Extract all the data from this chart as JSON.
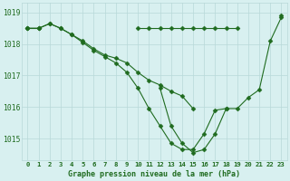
{
  "title": "Graphe pression niveau de la mer (hPa)",
  "x": [
    0,
    1,
    2,
    3,
    4,
    5,
    6,
    7,
    8,
    9,
    10,
    11,
    12,
    13,
    14,
    15,
    16,
    17,
    18,
    19,
    20,
    21,
    22,
    23
  ],
  "line_flat": [
    1018.5,
    1018.5,
    null,
    null,
    null,
    null,
    null,
    null,
    null,
    null,
    1018.5,
    1018.5,
    1018.5,
    1018.5,
    1018.5,
    1018.5,
    1018.5,
    1018.5,
    1018.5,
    1018.5,
    null,
    null,
    null,
    1018.9
  ],
  "line_slow": [
    1018.5,
    1018.5,
    1018.65,
    1018.5,
    1018.3,
    1018.1,
    1017.85,
    1017.65,
    1017.55,
    1017.4,
    1017.1,
    1016.85,
    1016.7,
    1016.5,
    1016.35,
    1015.95,
    null,
    null,
    null,
    null,
    null,
    null,
    null,
    null
  ],
  "line_main": [
    1018.5,
    1018.5,
    1018.65,
    1018.5,
    1018.3,
    1018.05,
    1017.8,
    1017.6,
    1017.4,
    1017.1,
    1016.6,
    1015.95,
    1015.4,
    1014.85,
    1014.65,
    1014.65,
    1015.15,
    1015.9,
    1015.95,
    1015.95,
    1016.3,
    1016.55,
    1018.1,
    1018.85
  ],
  "line_inner": [
    null,
    null,
    null,
    null,
    null,
    null,
    null,
    null,
    null,
    null,
    null,
    null,
    1016.6,
    1015.4,
    1014.85,
    1014.55,
    1014.65,
    1015.15,
    1015.95,
    null,
    null,
    null,
    null,
    null
  ],
  "ylim_min": 1014.3,
  "ylim_max": 1019.3,
  "yticks": [
    1015,
    1016,
    1017,
    1018,
    1019
  ],
  "xtick_labels": [
    "0",
    "1",
    "2",
    "3",
    "4",
    "5",
    "6",
    "7",
    "8",
    "9",
    "10",
    "11",
    "12",
    "13",
    "14",
    "15",
    "16",
    "17",
    "18",
    "19",
    "20",
    "21",
    "22",
    "23"
  ],
  "line_color": "#1f6b1f",
  "bg_color": "#d8f0f0",
  "grid_color": "#b8d8d8",
  "marker": "D",
  "marker_size": 2.5,
  "linewidth": 0.8
}
